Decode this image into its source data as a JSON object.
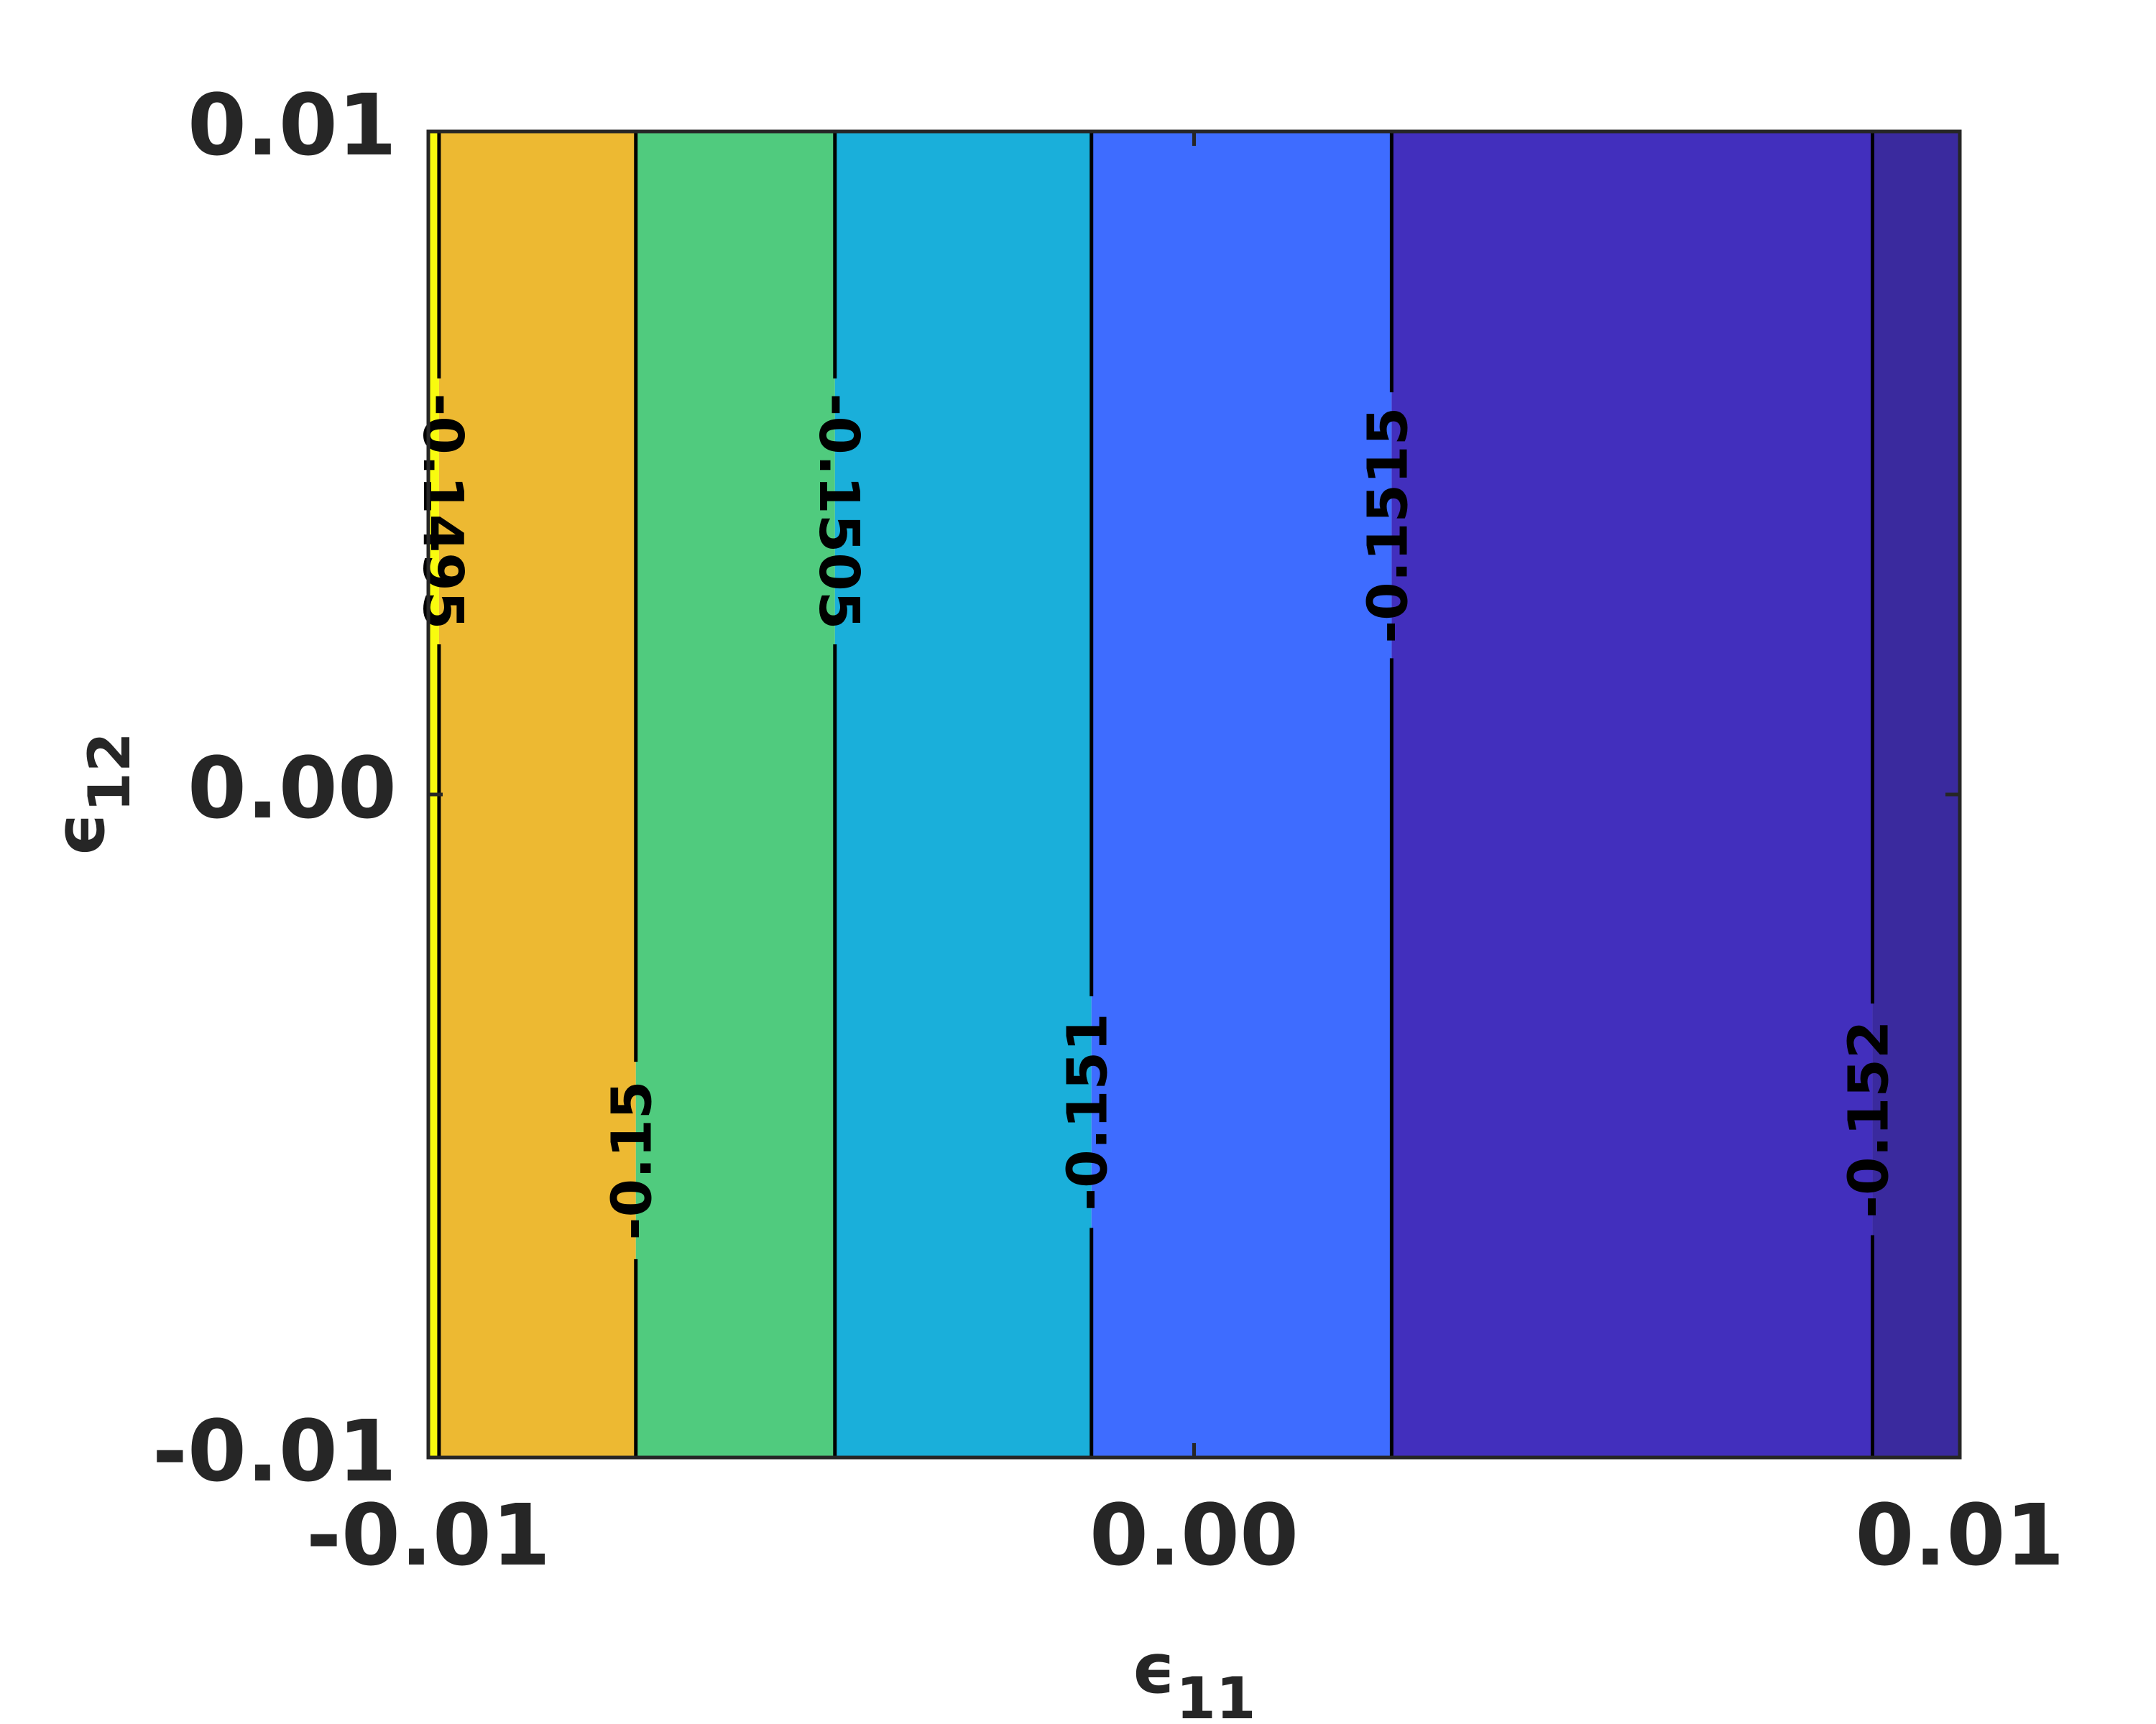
{
  "chart_data": {
    "type": "contour",
    "xlabel": "ϵ",
    "xlabel_subscript": "11",
    "ylabel": "ϵ",
    "ylabel_subscript": "12",
    "xlim": [
      -0.01,
      0.01
    ],
    "ylim": [
      -0.01,
      0.01
    ],
    "xticks": [
      -0.01,
      {
        "value": 0,
        "label": "0.00"
      },
      0.01
    ],
    "yticks": [
      -0.01,
      {
        "value": 0,
        "label": "0.00"
      },
      0.01
    ],
    "contours": [
      {
        "level": -0.1495,
        "x": -0.00986,
        "label_y": 0.00427,
        "label_angle": 90
      },
      {
        "level": -0.15,
        "x": -0.00729,
        "label_y": -0.00552,
        "label_angle": -90
      },
      {
        "level": -0.1505,
        "x": -0.00469,
        "label_y": 0.00427,
        "label_angle": 90
      },
      {
        "level": -0.151,
        "x": -0.00134,
        "label_y": -0.00479,
        "label_angle": -90
      },
      {
        "level": -0.1515,
        "x": 0.00258,
        "label_y": 0.00406,
        "label_angle": -90
      },
      {
        "level": -0.152,
        "x": 0.00886,
        "label_y": -0.0049,
        "label_angle": -90
      }
    ],
    "fill_colors": [
      "#f9fb0e",
      "#edb932",
      "#50cb7e",
      "#1aafda",
      "#3e6cff",
      "#422fbd",
      "#3a2a9e"
    ],
    "line_color": "#000000"
  }
}
